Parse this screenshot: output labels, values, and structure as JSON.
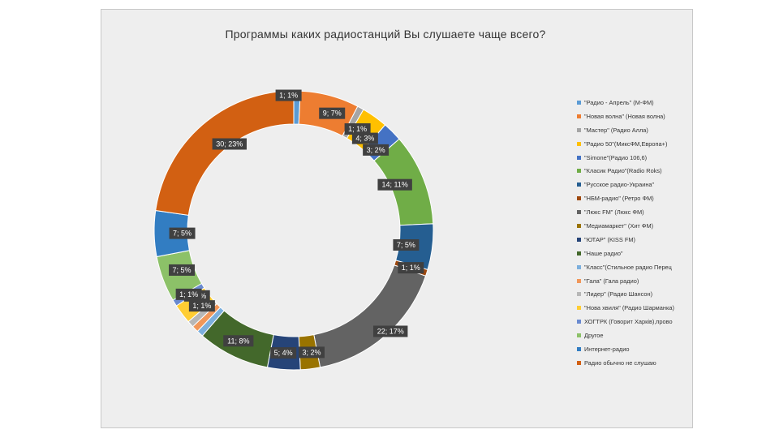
{
  "chart_data": {
    "type": "pie",
    "variant": "donut",
    "title": "Программы каких радиостанций Вы слушаете чаще всего?",
    "legend_position": "right",
    "rings": [
      {
        "ring": "outer",
        "slices": [
          {
            "name": "\"Радио - Апрель\" (М-ФМ)",
            "value": 1,
            "percent": 1,
            "color": "#5b9bd5",
            "label": "1; 1%"
          },
          {
            "name": "\"Новая волна\" (Новая волна)",
            "value": 9,
            "percent": 7,
            "color": "#ed7d31",
            "label": "9; 7%"
          },
          {
            "name": "\"Мастер\" (Радио Алла)",
            "value": 1,
            "percent": 1,
            "color": "#a5a5a5",
            "label": "1; 1%"
          },
          {
            "name": "\"Радио 50\"(МиксФМ,Европа+)",
            "value": 4,
            "percent": 3,
            "color": "#ffc000",
            "label": "4; 3%"
          },
          {
            "name": "\"Simone\"(Радио 106,6)",
            "value": 3,
            "percent": 2,
            "color": "#4472c4",
            "label": "3; 2%"
          },
          {
            "name": "\"Класик Радио\"(Radio Roks)",
            "value": 14,
            "percent": 11,
            "color": "#70ad47",
            "label": "14; 11%"
          },
          {
            "name": "\"Русское радио-Украина\"",
            "value": 7,
            "percent": 5,
            "color": "#255e91",
            "label": "7; 5%"
          },
          {
            "name": "\"НБМ-радио\" (Ретро ФМ)",
            "value": 1,
            "percent": 1,
            "color": "#9e480e",
            "label": "1; 1%"
          },
          {
            "name": "\"Люкс FM\" (Люкс ФМ)",
            "value": 22,
            "percent": 17,
            "color": "#636363",
            "label": "22; 17%"
          },
          {
            "name": "\"Медиамаркет\" (Хит ФМ)",
            "value": 3,
            "percent": 2,
            "color": "#997300",
            "label": "3; 2%"
          },
          {
            "name": "\"ЮТАР\" (KISS FM)",
            "value": 5,
            "percent": 4,
            "color": "#264478",
            "label": "5; 4%"
          },
          {
            "name": "\"Наше радио\"",
            "value": 11,
            "percent": 8,
            "color": "#43682b",
            "label": "11; 8%"
          },
          {
            "name": "\"Класс\"(Стильное радио Перец",
            "value": 1,
            "percent": 1,
            "color": "#7cafdd",
            "label": "1; 1%"
          },
          {
            "name": "\"Гала\" (Гала радио)",
            "value": 1,
            "percent": 1,
            "color": "#f1975a",
            "label": "1; 1%"
          },
          {
            "name": "\"Лидер\" (Радио Шансон)",
            "value": 1,
            "percent": 1,
            "color": "#b7b7b7",
            "label": "1; 1%"
          },
          {
            "name": "\"Нова хвиля\" (Радио Шарманка)",
            "value": 3,
            "percent": 2,
            "color": "#ffcd33",
            "label": "3; 2%"
          },
          {
            "name": "ХОГТРК (Говорит Харків),прово",
            "value": 1,
            "percent": 1,
            "color": "#6a8ad0",
            "label": "1; 1%"
          },
          {
            "name": "Другое",
            "value": 7,
            "percent": 5,
            "color": "#8cc168",
            "label": "7; 5%"
          },
          {
            "name": "Интернет-радио",
            "value": 7,
            "percent": 5,
            "color": "#327dc2",
            "label": "7; 5%"
          },
          {
            "name": "Радио обычно не слушаю",
            "value": 30,
            "percent": 23,
            "color": "#d26012",
            "label": "30; 23%"
          }
        ]
      }
    ]
  }
}
